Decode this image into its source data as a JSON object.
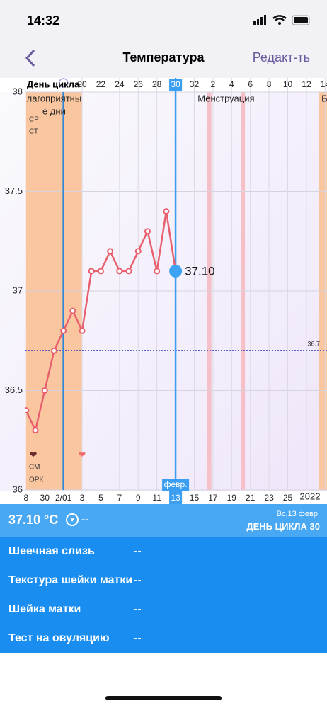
{
  "status_bar": {
    "time": "14:32"
  },
  "nav": {
    "title": "Температура",
    "action": "Редакт-ть"
  },
  "chart_data": {
    "type": "line",
    "x_label": "День цикла",
    "x": [
      14,
      15,
      16,
      17,
      18,
      19,
      20,
      21,
      22,
      23,
      24,
      25,
      26,
      27,
      28,
      29,
      30
    ],
    "values": [
      36.4,
      36.3,
      36.5,
      36.7,
      36.8,
      36.9,
      36.8,
      37.1,
      37.1,
      37.2,
      37.1,
      37.1,
      37.2,
      37.3,
      37.1,
      37.4,
      37.1
    ],
    "value_labels": [
      null,
      null,
      null,
      null,
      null,
      null,
      null,
      null,
      null,
      null,
      null,
      null,
      null,
      null,
      null,
      null,
      "37.10"
    ],
    "color": "#e8606e",
    "ylim": [
      36,
      38
    ],
    "yticks": [
      36,
      36.5,
      37,
      37.5,
      38
    ],
    "xlim": [
      14,
      46.2
    ],
    "xticks": [
      20,
      22,
      24,
      26,
      28,
      30,
      32,
      {
        "value": 34,
        "label": "2"
      },
      {
        "value": 36,
        "label": "4"
      },
      {
        "value": 38,
        "label": "6"
      },
      {
        "value": 40,
        "label": "8"
      },
      {
        "value": 42,
        "label": "10"
      },
      {
        "value": 44,
        "label": "12"
      },
      {
        "value": 46,
        "label": "14"
      }
    ],
    "date_ticks": [
      {
        "value": 14,
        "label": "8"
      },
      {
        "value": 16,
        "label": "30"
      },
      {
        "value": 18,
        "label": "2/01"
      },
      {
        "value": 20,
        "label": "3"
      },
      {
        "value": 22,
        "label": "5"
      },
      {
        "value": 24,
        "label": "7"
      },
      {
        "value": 26,
        "label": "9"
      },
      {
        "value": 28,
        "label": "11"
      },
      {
        "value": 30,
        "label": "13"
      },
      {
        "value": 32,
        "label": "15"
      },
      {
        "value": 34,
        "label": "17"
      },
      {
        "value": 36,
        "label": "19"
      },
      {
        "value": 38,
        "label": "21"
      },
      {
        "value": 40,
        "label": "23"
      },
      {
        "value": 42,
        "label": "25"
      }
    ],
    "selected_x": 30,
    "selected_month": "февр.",
    "ovulation_x": 18,
    "year_label": "2022",
    "reference_line": 36.7,
    "grid": true,
    "bands": [
      {
        "x": [
          14,
          20
        ],
        "label_lines": [
          "лагоприятны",
          "е дни"
        ],
        "color": "#f9c6a0"
      },
      {
        "x": [
          45.3,
          46.2
        ],
        "label_lines": [
          "Бл"
        ],
        "color": "#f9c6a0"
      }
    ],
    "menstruation": {
      "label": "Менструация",
      "days": [
        33.6,
        37.2
      ],
      "color": "#f6c0c8"
    },
    "left_labels": [
      "СР",
      "СТ",
      "СМ",
      "ОРК"
    ]
  },
  "details": {
    "temperature": "37.10 °C",
    "temperature_note": "--",
    "date": "Вс,13 февр.",
    "cycle_day": "ДЕНЬ ЦИКЛА 30",
    "rows": [
      {
        "label": "Шеечная слизь",
        "value": "--"
      },
      {
        "label": "Текстура шейки матки",
        "value": "--"
      },
      {
        "label": "Шейка матки",
        "value": "--"
      },
      {
        "label": "Тест на овуляцию",
        "value": "--"
      }
    ]
  }
}
